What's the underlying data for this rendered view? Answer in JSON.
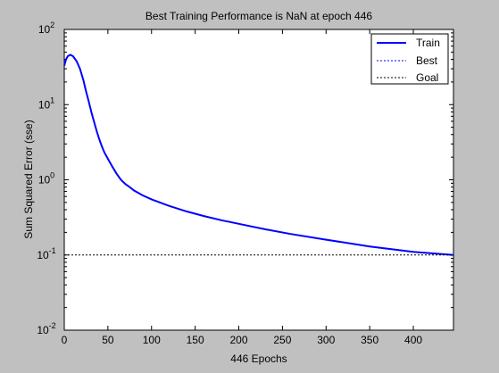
{
  "chart_data": {
    "type": "line",
    "title": "Best Training Performance is NaN at epoch 446",
    "xlabel": "446 Epochs",
    "ylabel": "Sum Squared Error  (sse)",
    "xlim": [
      0,
      446
    ],
    "ylim": [
      0.01,
      100
    ],
    "yscale": "log",
    "grid": false,
    "legend_position": "top-right",
    "x_ticks": [
      "0",
      "50",
      "100",
      "150",
      "200",
      "250",
      "300",
      "350",
      "400"
    ],
    "x_tick_values": [
      0,
      50,
      100,
      150,
      200,
      250,
      300,
      350,
      400
    ],
    "y_tick_values": [
      0.01,
      0.1,
      1,
      10,
      100
    ],
    "y_tick_labels": [
      {
        "base": "10",
        "exp": "-2"
      },
      {
        "base": "10",
        "exp": "-1"
      },
      {
        "base": "10",
        "exp": "0"
      },
      {
        "base": "10",
        "exp": "1"
      },
      {
        "base": "10",
        "exp": "2"
      }
    ],
    "series": [
      {
        "name": "Train",
        "color": "#0000ff",
        "style": "solid",
        "x": [
          0,
          2,
          4,
          7,
          10,
          14,
          18,
          22,
          25,
          28,
          31,
          34,
          37,
          40,
          43,
          46,
          50,
          55,
          60,
          65,
          70,
          75,
          80,
          90,
          100,
          120,
          140,
          160,
          180,
          200,
          230,
          260,
          300,
          350,
          400,
          446
        ],
        "y": [
          33,
          40,
          44,
          46,
          44,
          38,
          30,
          21,
          15,
          11,
          8,
          6,
          4.5,
          3.5,
          2.8,
          2.3,
          1.9,
          1.5,
          1.2,
          1.0,
          0.88,
          0.8,
          0.72,
          0.62,
          0.55,
          0.45,
          0.38,
          0.33,
          0.29,
          0.26,
          0.22,
          0.19,
          0.16,
          0.13,
          0.11,
          0.1
        ]
      },
      {
        "name": "Best",
        "color": "#0000ff",
        "style": "dotted",
        "x": [],
        "y": []
      },
      {
        "name": "Goal",
        "color": "#000000",
        "style": "dotted",
        "x": [
          0,
          446
        ],
        "y": [
          0.1,
          0.1
        ]
      }
    ]
  }
}
